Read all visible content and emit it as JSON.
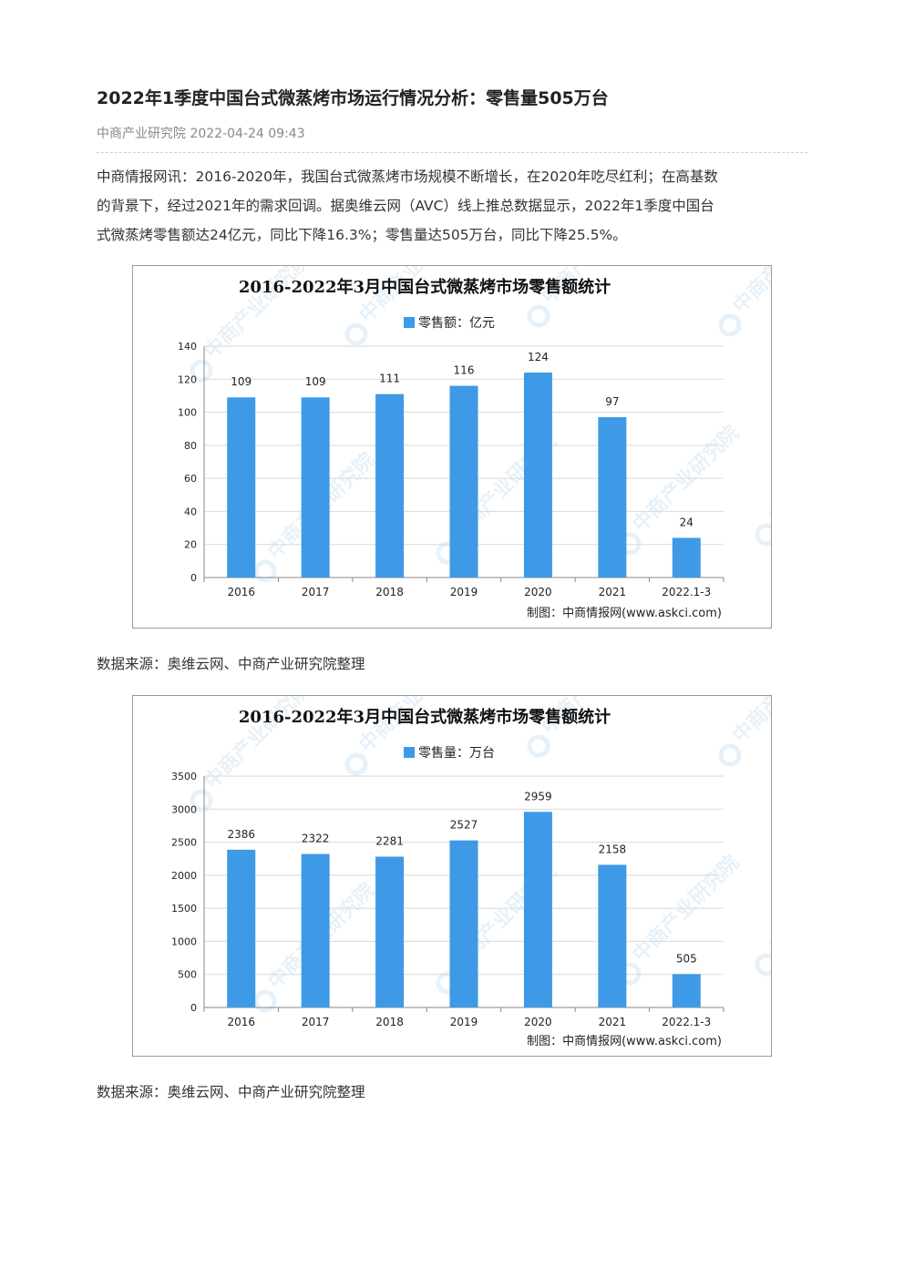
{
  "article": {
    "title": "2022年1季度中国台式微蒸烤市场运行情况分析：零售量505万台",
    "meta": "中商产业研究院 2022-04-24 09:43",
    "lead_lines": [
      "中商情报网讯：2016-2020年，我国台式微蒸烤市场规模不断增长，在2020年吃尽红利；在高基数",
      "的背景下，经过2021年的需求回调。据奥维云网（AVC）线上推总数据显示，2022年1季度中国台",
      "式微蒸烤零售额达24亿元，同比下降16.3%；零售量达505万台，同比下降25.5%。"
    ],
    "source1": "数据来源：奥维云网、中商产业研究院整理",
    "source2": "数据来源：奥维云网、中商产业研究院整理"
  },
  "watermark": "中商产业研究院",
  "credit": "制图：中商情报网(www.askci.com)",
  "colors": {
    "bar": "#3e9ae6",
    "grid": "#d9d9d9",
    "axis": "#888888"
  },
  "chart_data": [
    {
      "type": "bar",
      "title": "2016-2022年3月中国台式微蒸烤市场零售额统计",
      "legend": "零售额：亿元",
      "legend_position": "top",
      "categories": [
        "2016",
        "2017",
        "2018",
        "2019",
        "2020",
        "2021",
        "2022.1-3"
      ],
      "values": [
        109,
        109,
        111,
        116,
        124,
        97,
        24
      ],
      "ylim": [
        0,
        140
      ],
      "yticks": [
        0,
        20,
        40,
        60,
        80,
        100,
        120,
        140
      ],
      "grid": true
    },
    {
      "type": "bar",
      "title": "2016-2022年3月中国台式微蒸烤市场零售额统计",
      "legend": "零售量：万台",
      "legend_position": "top",
      "categories": [
        "2016",
        "2017",
        "2018",
        "2019",
        "2020",
        "2021",
        "2022.1-3"
      ],
      "values": [
        2386,
        2322,
        2281,
        2527,
        2959,
        2158,
        505
      ],
      "ylim": [
        0,
        3500
      ],
      "yticks": [
        0,
        500,
        1000,
        1500,
        2000,
        2500,
        3000,
        3500
      ],
      "grid": true
    }
  ]
}
